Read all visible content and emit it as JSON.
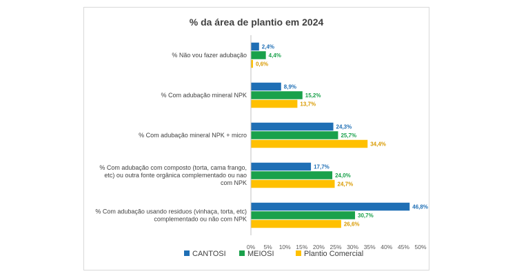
{
  "chart_data": {
    "type": "bar",
    "orientation": "horizontal",
    "title": "% da área de plantio em 2024",
    "categories": [
      [
        "%  Não vou fazer adubação"
      ],
      [
        "% Com adubação mineral NPK"
      ],
      [
        "% Com adubação mineral NPK + micro"
      ],
      [
        "% Com adubação com composto (torta, cama frango,",
        "etc) ou outra fonte orgânica complementado ou nao",
        "com NPK"
      ],
      [
        "% Com adubação usando residuos (vinhaça, torta, etc)",
        "complementado ou não com NPK"
      ]
    ],
    "series": [
      {
        "name": "CANTOSI",
        "color": "#1f6fb5",
        "labelColor": "#1f6fb5",
        "values": [
          2.4,
          8.9,
          24.3,
          17.7,
          46.8
        ],
        "labels": [
          "2,4%",
          "8,9%",
          "24,3%",
          "17,7%",
          "46,8%"
        ]
      },
      {
        "name": "MEIOSI",
        "color": "#1aa14b",
        "labelColor": "#1aa14b",
        "values": [
          4.4,
          15.2,
          25.7,
          24.0,
          30.7
        ],
        "labels": [
          "4,4%",
          "15,2%",
          "25,7%",
          "24,0%",
          "30,7%"
        ]
      },
      {
        "name": "Plantio Comercial",
        "color": "#ffc000",
        "labelColor": "#d99a00",
        "values": [
          0.6,
          13.7,
          34.4,
          24.7,
          26.6
        ],
        "labels": [
          "0,6%",
          "13,7%",
          "34,4%",
          "24,7%",
          "26,6%"
        ]
      }
    ],
    "xlim": [
      0,
      50
    ],
    "xticks": [
      0,
      5,
      10,
      15,
      20,
      25,
      30,
      35,
      40,
      45,
      50
    ],
    "xtick_labels": [
      "0%",
      "5%",
      "10%",
      "15%",
      "20%",
      "25%",
      "30%",
      "35%",
      "40%",
      "45%",
      "50%"
    ],
    "grid": false,
    "legend": "bottom"
  }
}
